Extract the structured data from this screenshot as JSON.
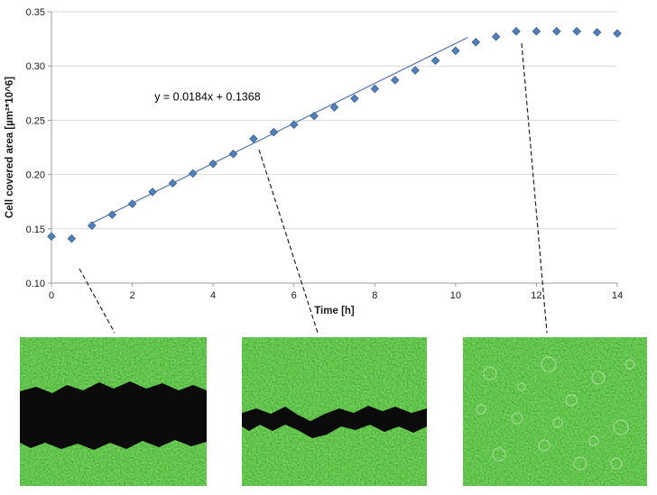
{
  "chart_data": {
    "type": "scatter",
    "title": "",
    "xlabel": "Time [h]",
    "ylabel": "Cell covered area [µm²*10^6]",
    "xlim": [
      0,
      14
    ],
    "ylim": [
      0.1,
      0.35
    ],
    "x_ticks": [
      0,
      2,
      4,
      6,
      8,
      10,
      12,
      14
    ],
    "y_ticks": [
      0.1,
      0.15,
      0.2,
      0.25,
      0.3,
      0.35
    ],
    "grid": "horizontal",
    "legend": "none",
    "annotation": "y = 0.0184x + 0.1368",
    "annotation_pos": [
      2.55,
      0.268
    ],
    "x": [
      0,
      0.5,
      1,
      1.5,
      2,
      2.5,
      3,
      3.5,
      4,
      4.5,
      5,
      5.5,
      6,
      6.5,
      7,
      7.5,
      8,
      8.5,
      9,
      9.5,
      10,
      10.5,
      11,
      11.5,
      12,
      12.5,
      13,
      13.5,
      14
    ],
    "y": [
      0.143,
      0.141,
      0.153,
      0.163,
      0.173,
      0.184,
      0.192,
      0.201,
      0.21,
      0.219,
      0.233,
      0.239,
      0.246,
      0.254,
      0.262,
      0.27,
      0.279,
      0.287,
      0.296,
      0.305,
      0.314,
      0.322,
      0.327,
      0.332,
      0.332,
      0.332,
      0.332,
      0.331,
      0.33
    ],
    "trendline": {
      "slope": 0.0184,
      "intercept": 0.1368,
      "x_start": 1.0,
      "x_end": 10.3
    },
    "style": {
      "marker": "diamond",
      "marker_fill": "#4f81bd",
      "marker_stroke": "#385d8a",
      "trendline_color": "#4a6ea9",
      "grid_color": "#d9d9d9",
      "axis_color": "#9b9b9b",
      "text_color": "#1a1a1a"
    }
  },
  "micrographs": {
    "cells_green_dark": "#2e7023",
    "scratch_black": "#0b0b0b",
    "cell_ring": "#d8eccb"
  }
}
